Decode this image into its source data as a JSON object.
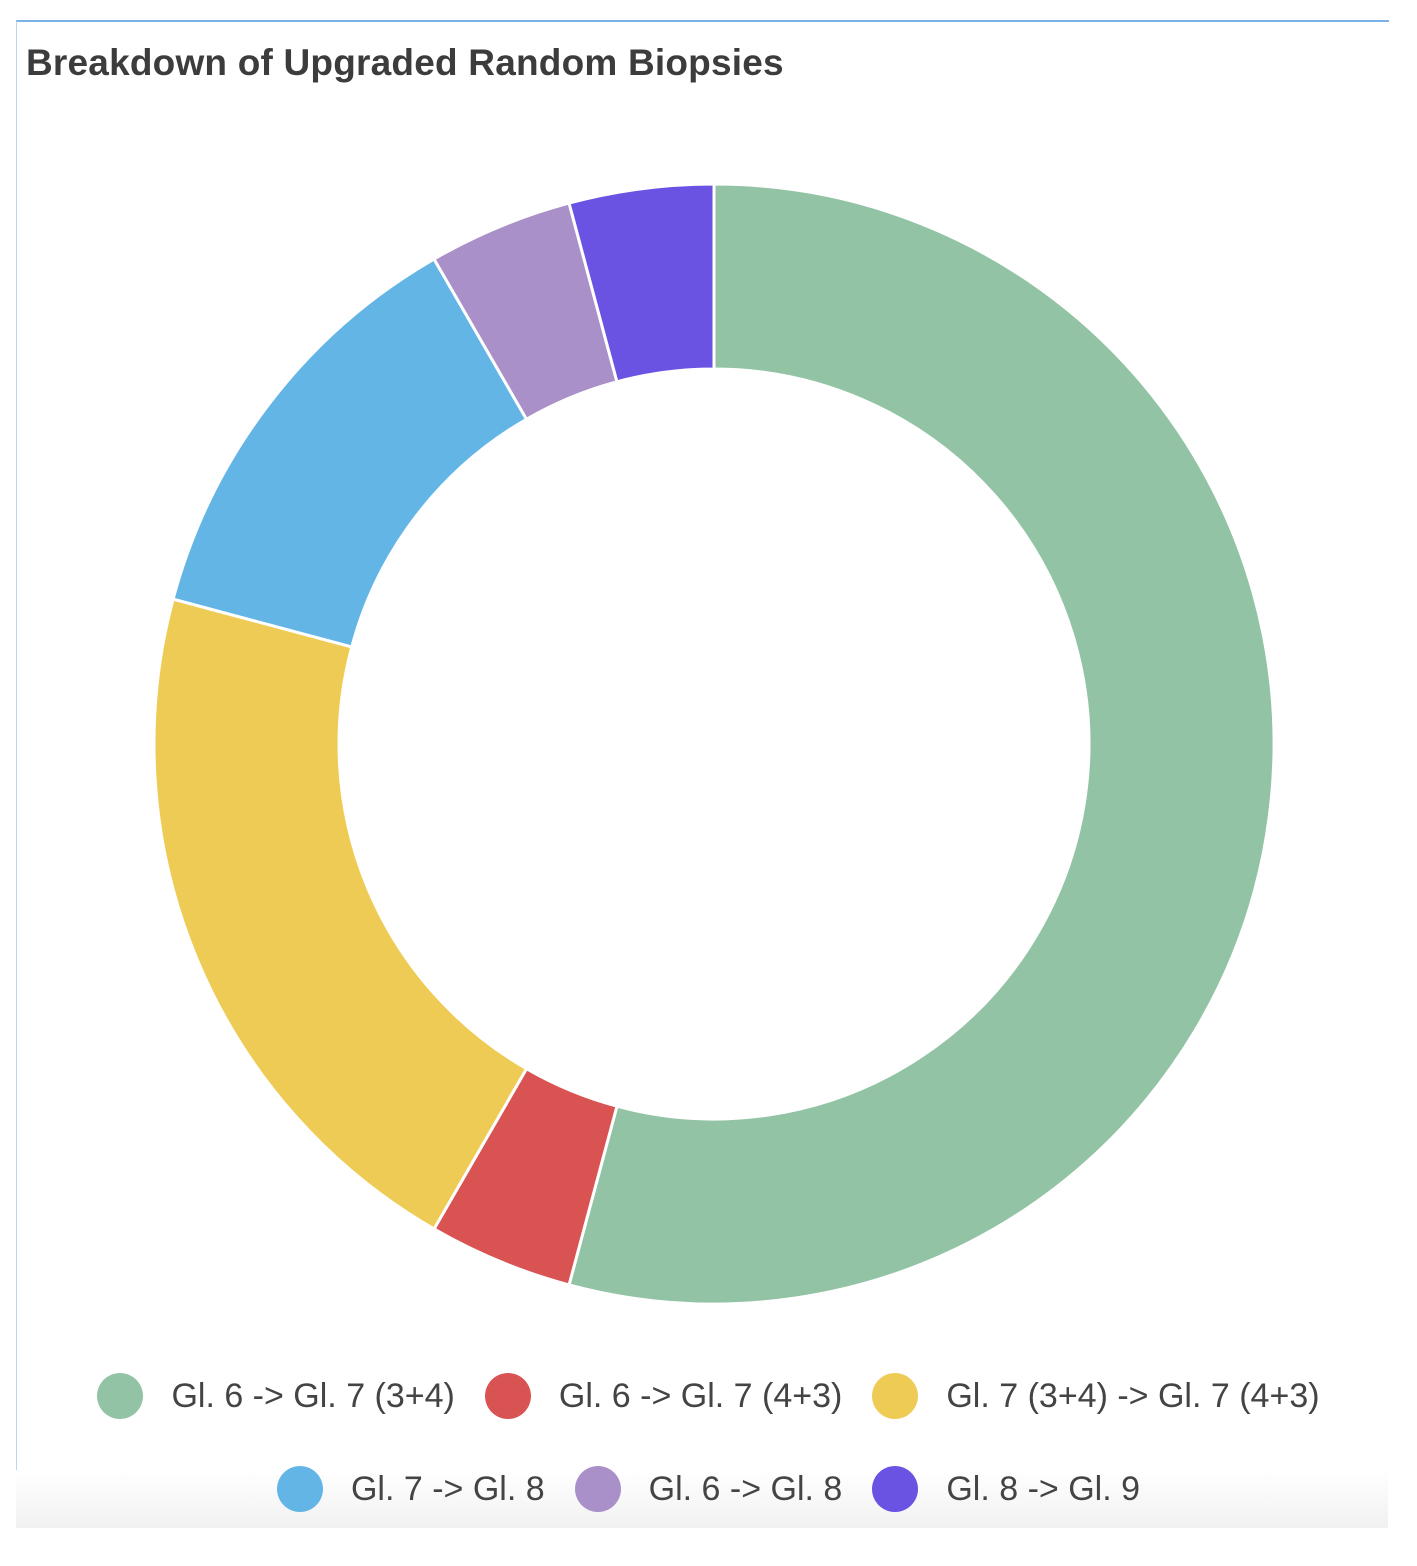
{
  "chart_data": {
    "type": "pie",
    "subtype": "donut",
    "title": "Breakdown of Upgraded Random Biopsies",
    "categories": [
      "Gl. 6 -> Gl. 7 (3+4)",
      "Gl. 6 -> Gl. 7 (4+3)",
      "Gl. 7 (3+4) -> Gl. 7 (4+3)",
      "Gl. 7 -> Gl. 8",
      "Gl. 6 -> Gl. 8",
      "Gl. 8 -> Gl. 9"
    ],
    "values": [
      13,
      1,
      5,
      3,
      1,
      1
    ],
    "colors": [
      "#93c3a5",
      "#d95353",
      "#eecb55",
      "#63b5e6",
      "#a990c9",
      "#6a52e3"
    ],
    "legend_position": "bottom",
    "legend_rows": [
      [
        0,
        1,
        2
      ],
      [
        3,
        4,
        5
      ]
    ]
  }
}
